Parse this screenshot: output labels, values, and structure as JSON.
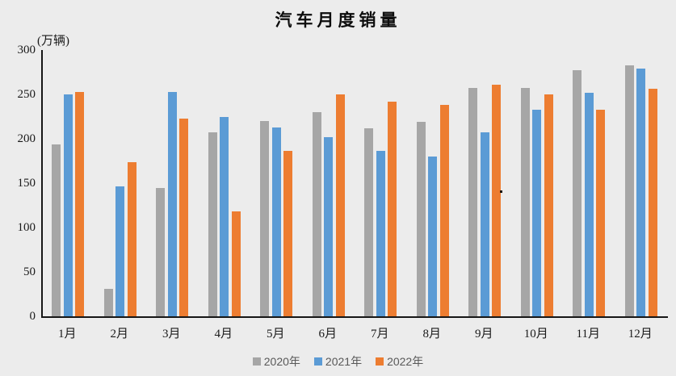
{
  "title": "汽车月度销量",
  "chart_data": {
    "type": "bar",
    "title": "汽车月度销量",
    "ylabel": "(万辆)",
    "xlabel": "",
    "ylim": [
      0,
      300
    ],
    "ytick_interval": 50,
    "yticks": [
      "300",
      "250",
      "200",
      "150",
      "100",
      "50",
      "0"
    ],
    "grid": false,
    "legend_position": "bottom",
    "categories": [
      "1月",
      "2月",
      "3月",
      "4月",
      "5月",
      "6月",
      "7月",
      "8月",
      "9月",
      "10月",
      "11月",
      "12月"
    ],
    "series": [
      {
        "name": "2020年",
        "color": "#A6A6A6",
        "values": [
          194,
          31,
          145,
          207,
          220,
          230,
          212,
          219,
          257,
          257,
          277,
          283
        ]
      },
      {
        "name": "2021年",
        "color": "#5B9BD5",
        "values": [
          250,
          146,
          253,
          225,
          213,
          202,
          186,
          180,
          207,
          233,
          252,
          279
        ]
      },
      {
        "name": "2022年",
        "color": "#ED7D31",
        "values": [
          253,
          174,
          223,
          118,
          186,
          250,
          242,
          238,
          261,
          250,
          233,
          256
        ]
      }
    ]
  },
  "colors": {
    "background": "#ECECEC",
    "axis_line": "#161616",
    "axis_text": "#1a1a1a",
    "legend_text": "#595959",
    "series_2020": "#A6A6A6",
    "series_2021": "#5B9BD5",
    "series_2022": "#ED7D31"
  }
}
